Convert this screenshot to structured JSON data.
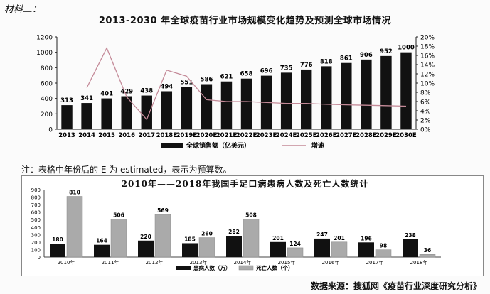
{
  "material_label": "材料二：",
  "note": "注：表格中年份后的 E 为 estimated，表示为预算数。",
  "source": "数据来源：搜狐网《疫苗行业深度研究分析》",
  "chart_data": [
    {
      "type": "bar",
      "title": "2013-2030 年全球疫苗行业市场规模变化趋势及预测全球市场情况",
      "categories": [
        "2013",
        "2014",
        "2015",
        "2016",
        "2017",
        "2018E",
        "2019E",
        "2020E",
        "2021E",
        "2022E",
        "2023E",
        "2024E",
        "2025E",
        "2026E",
        "2027E",
        "2028E",
        "2029E",
        "2030E"
      ],
      "series": [
        {
          "name": "全球销售额（亿美元）",
          "type": "bar",
          "color": "#111111",
          "values": [
            313,
            341,
            401,
            429,
            438,
            494,
            551,
            586,
            621,
            658,
            696,
            735,
            776,
            818,
            861,
            906,
            952,
            1000
          ]
        },
        {
          "name": "增速",
          "type": "line",
          "axis": "right",
          "color": "#c48a98",
          "values": [
            null,
            9.0,
            17.6,
            7.0,
            2.1,
            12.8,
            11.5,
            6.4,
            6.0,
            6.0,
            5.8,
            5.6,
            5.6,
            5.4,
            5.3,
            5.2,
            5.1,
            5.0
          ]
        }
      ],
      "y_ticks": [
        0,
        200,
        400,
        600,
        800,
        1000,
        1200
      ],
      "y2_ticks": [
        "0%",
        "2%",
        "4%",
        "6%",
        "8%",
        "10%",
        "12%",
        "14%",
        "16%",
        "18%",
        "20%"
      ],
      "ylim": [
        0,
        1200
      ],
      "y2lim": [
        0,
        20
      ],
      "legend_position": "bottom"
    },
    {
      "type": "bar",
      "title": "2010年——2018年我国手足口病患病人数及死亡人数统计",
      "categories": [
        "2010年",
        "2011年",
        "2012年",
        "2013年",
        "2014年",
        "2015年",
        "2016年",
        "2017年",
        "2018年"
      ],
      "series": [
        {
          "name": "患病人数（万）",
          "color": "#111111",
          "values": [
            180,
            164,
            220,
            185,
            282,
            201,
            247,
            196,
            238
          ]
        },
        {
          "name": "死亡人数（个）",
          "color": "#aaaaaa",
          "values": [
            810,
            506,
            569,
            260,
            508,
            124,
            201,
            98,
            36
          ]
        }
      ],
      "y_ticks": [
        0,
        100,
        200,
        300,
        400,
        500,
        600,
        700,
        800,
        900
      ],
      "ylim": [
        0,
        900
      ],
      "legend_position": "bottom"
    }
  ]
}
